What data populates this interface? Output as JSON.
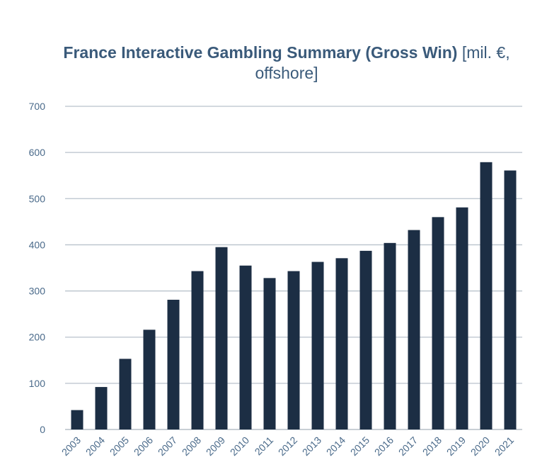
{
  "chart_data": {
    "type": "bar",
    "title_bold": "France Interactive Gambling Summary (Gross Win)",
    "title_light": "[mil. €, offshore]",
    "categories": [
      "2003",
      "2004",
      "2005",
      "2006",
      "2007",
      "2008",
      "2009",
      "2010",
      "2011",
      "2012",
      "2013",
      "2014",
      "2015",
      "2016",
      "2017",
      "2018",
      "2019",
      "2020",
      "2021"
    ],
    "values": [
      42,
      92,
      153,
      216,
      281,
      343,
      395,
      355,
      328,
      343,
      363,
      371,
      387,
      404,
      432,
      460,
      481,
      579,
      561
    ],
    "yticks": [
      "0",
      "100",
      "200",
      "300",
      "400",
      "500",
      "600",
      "700"
    ],
    "ylim": [
      0,
      700
    ],
    "grid": true,
    "colors": {
      "bar": "#1c2e44",
      "grid": "#b9c2cc",
      "axis": "#a9b2bc",
      "title": "#3a5a7a",
      "tick": "#4a6a8a"
    }
  }
}
